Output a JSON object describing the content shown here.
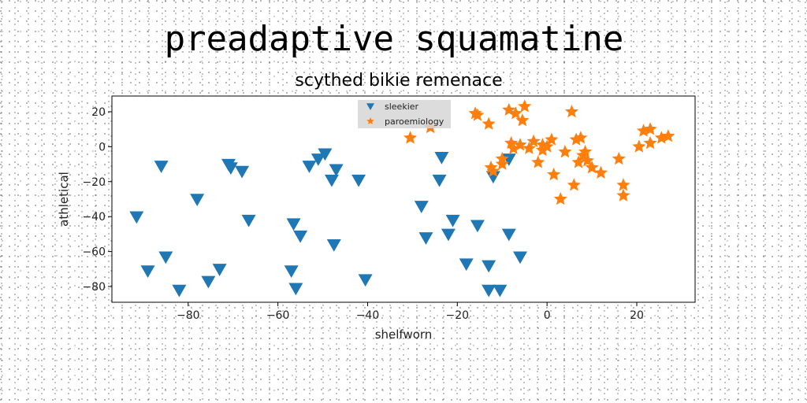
{
  "chart_data": {
    "type": "scatter",
    "title": "preadaptive squamatine",
    "subtitle": "scythed bikie remenace",
    "xlabel": "shelfworn",
    "ylabel": "athletical",
    "xlim": [
      -97,
      33
    ],
    "ylim": [
      -89,
      29
    ],
    "xticks": [
      -80,
      -60,
      -40,
      -20,
      0,
      20
    ],
    "yticks": [
      -80,
      -60,
      -40,
      -20,
      0,
      20
    ],
    "grid": false,
    "legend_position": "top-center",
    "series": [
      {
        "name": "sleekier",
        "marker": "triangle-down",
        "color": "#1f77b4",
        "x": [
          -91.5,
          -89,
          -86,
          -85,
          -82,
          -78,
          -75.5,
          -73,
          -71,
          -70.5,
          -68,
          -66.5,
          -57,
          -56.5,
          -56,
          -55,
          -53,
          -51,
          -49.5,
          -48,
          -47.5,
          -47,
          -42,
          -40.5,
          -28,
          -27,
          -24,
          -23.5,
          -22,
          -21,
          -18,
          -15.5,
          -13,
          -13,
          -12,
          -10.5,
          -8.5,
          -8.5,
          -6
        ],
        "y": [
          -40,
          -71,
          -11,
          -63,
          -82,
          -30,
          -77,
          -70,
          -10,
          -12,
          -14,
          -42,
          -71,
          -44,
          -81,
          -51,
          -11,
          -7,
          -4,
          -19,
          -56,
          -13,
          -19,
          -76,
          -34,
          -52,
          -19,
          -6,
          -50,
          -42,
          -67,
          -45,
          -82,
          -68,
          -17,
          -82,
          -50,
          -7,
          -63
        ]
      },
      {
        "name": "paroemiology",
        "marker": "star",
        "color": "#ff7f0e",
        "x": [
          -30.5,
          -26,
          -16,
          -15.5,
          -13,
          -12.5,
          -12,
          -10,
          -10,
          -8.5,
          -8,
          -7.5,
          -7,
          -6,
          -5.5,
          -5,
          -4,
          -3,
          -2,
          -1,
          -1,
          0,
          1,
          1.5,
          3,
          4,
          5.5,
          6,
          6.5,
          7,
          7.5,
          8,
          8.5,
          9,
          10,
          12,
          16,
          17,
          17,
          20.5,
          21.5,
          23,
          23,
          25.5,
          27
        ],
        "y": [
          5,
          11,
          19,
          18,
          13,
          -12,
          -14,
          -10,
          -7,
          21,
          2,
          -1,
          19,
          1,
          15,
          23,
          -1,
          3,
          -9,
          -2,
          1,
          0,
          4,
          -16,
          -30,
          -3,
          20,
          -22,
          4,
          -9,
          5,
          -5,
          -3,
          -8,
          -12,
          -15,
          -7,
          -28,
          -22,
          0,
          9,
          10,
          2,
          5,
          6
        ]
      }
    ]
  }
}
